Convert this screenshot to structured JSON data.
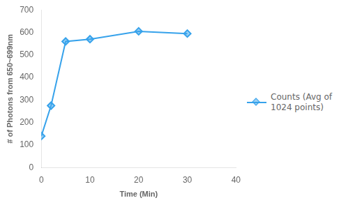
{
  "chart_data": {
    "type": "line",
    "xlabel": "Time (Min)",
    "ylabel": "# of Photons from 650~699nm",
    "x": [
      0,
      2,
      5,
      10,
      20,
      30
    ],
    "series": [
      {
        "name": "Counts (Avg of\n1024 points)",
        "values": [
          140,
          275,
          560,
          570,
          605,
          595
        ],
        "marker": "diamond"
      }
    ],
    "xlim": [
      0,
      40
    ],
    "ylim": [
      0,
      700
    ],
    "xticks": [
      0,
      10,
      20,
      30,
      40
    ],
    "yticks": [
      0,
      100,
      200,
      300,
      400,
      500,
      600,
      700
    ],
    "grid": false,
    "legend": "right"
  }
}
